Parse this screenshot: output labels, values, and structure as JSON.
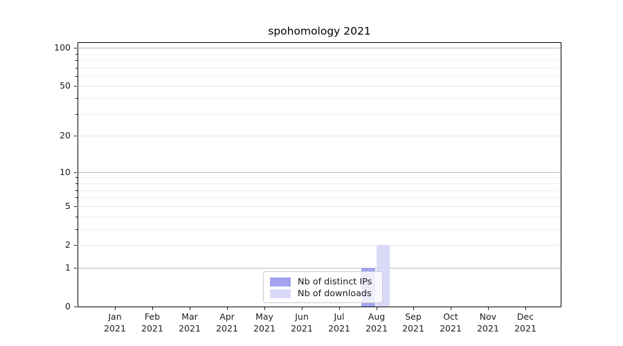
{
  "chart_data": {
    "type": "bar",
    "title": "spohomology 2021",
    "categories": [
      "Jan 2021",
      "Feb 2021",
      "Mar 2021",
      "Apr 2021",
      "May 2021",
      "Jun 2021",
      "Jul 2021",
      "Aug 2021",
      "Sep 2021",
      "Oct 2021",
      "Nov 2021",
      "Dec 2021"
    ],
    "x_months": [
      "Jan",
      "Feb",
      "Mar",
      "Apr",
      "May",
      "Jun",
      "Jul",
      "Aug",
      "Sep",
      "Oct",
      "Nov",
      "Dec"
    ],
    "x_year": "2021",
    "series": [
      {
        "name": "Nb of distinct IPs",
        "color": "#a3a3f0",
        "values": [
          0,
          0,
          0,
          0,
          0,
          0,
          0,
          1,
          0,
          0,
          0,
          0
        ]
      },
      {
        "name": "Nb of downloads",
        "color": "#d9d9f8",
        "values": [
          0,
          0,
          0,
          0,
          0,
          0,
          0,
          2,
          0,
          0,
          0,
          0
        ]
      }
    ],
    "y_axis": {
      "scale": "log(1+x)",
      "tick_values": [
        0,
        1,
        2,
        5,
        10,
        20,
        50,
        100
      ],
      "tick_labels": [
        "0",
        "1",
        "2",
        "5",
        "10",
        "20",
        "50",
        "100"
      ],
      "strong_grid_values": [
        1,
        10,
        100
      ],
      "light_grid_values": [
        2,
        5,
        20,
        50
      ],
      "minor_grid_values": [
        3,
        4,
        6,
        7,
        8,
        9,
        30,
        40,
        60,
        70,
        80,
        90
      ],
      "ylim": [
        0,
        112
      ]
    },
    "legend": {
      "position": "lower center",
      "entries": [
        "Nb of distinct IPs",
        "Nb of downloads"
      ]
    },
    "grid": true
  },
  "colors": {
    "background": "#ffffff",
    "axis": "#000000",
    "grid_strong": "#bdbdbd",
    "grid_light": "#e7e7e7",
    "grid_minor": "#efefef",
    "text": "#1a1a1a",
    "legend_border": "#cccccc"
  }
}
